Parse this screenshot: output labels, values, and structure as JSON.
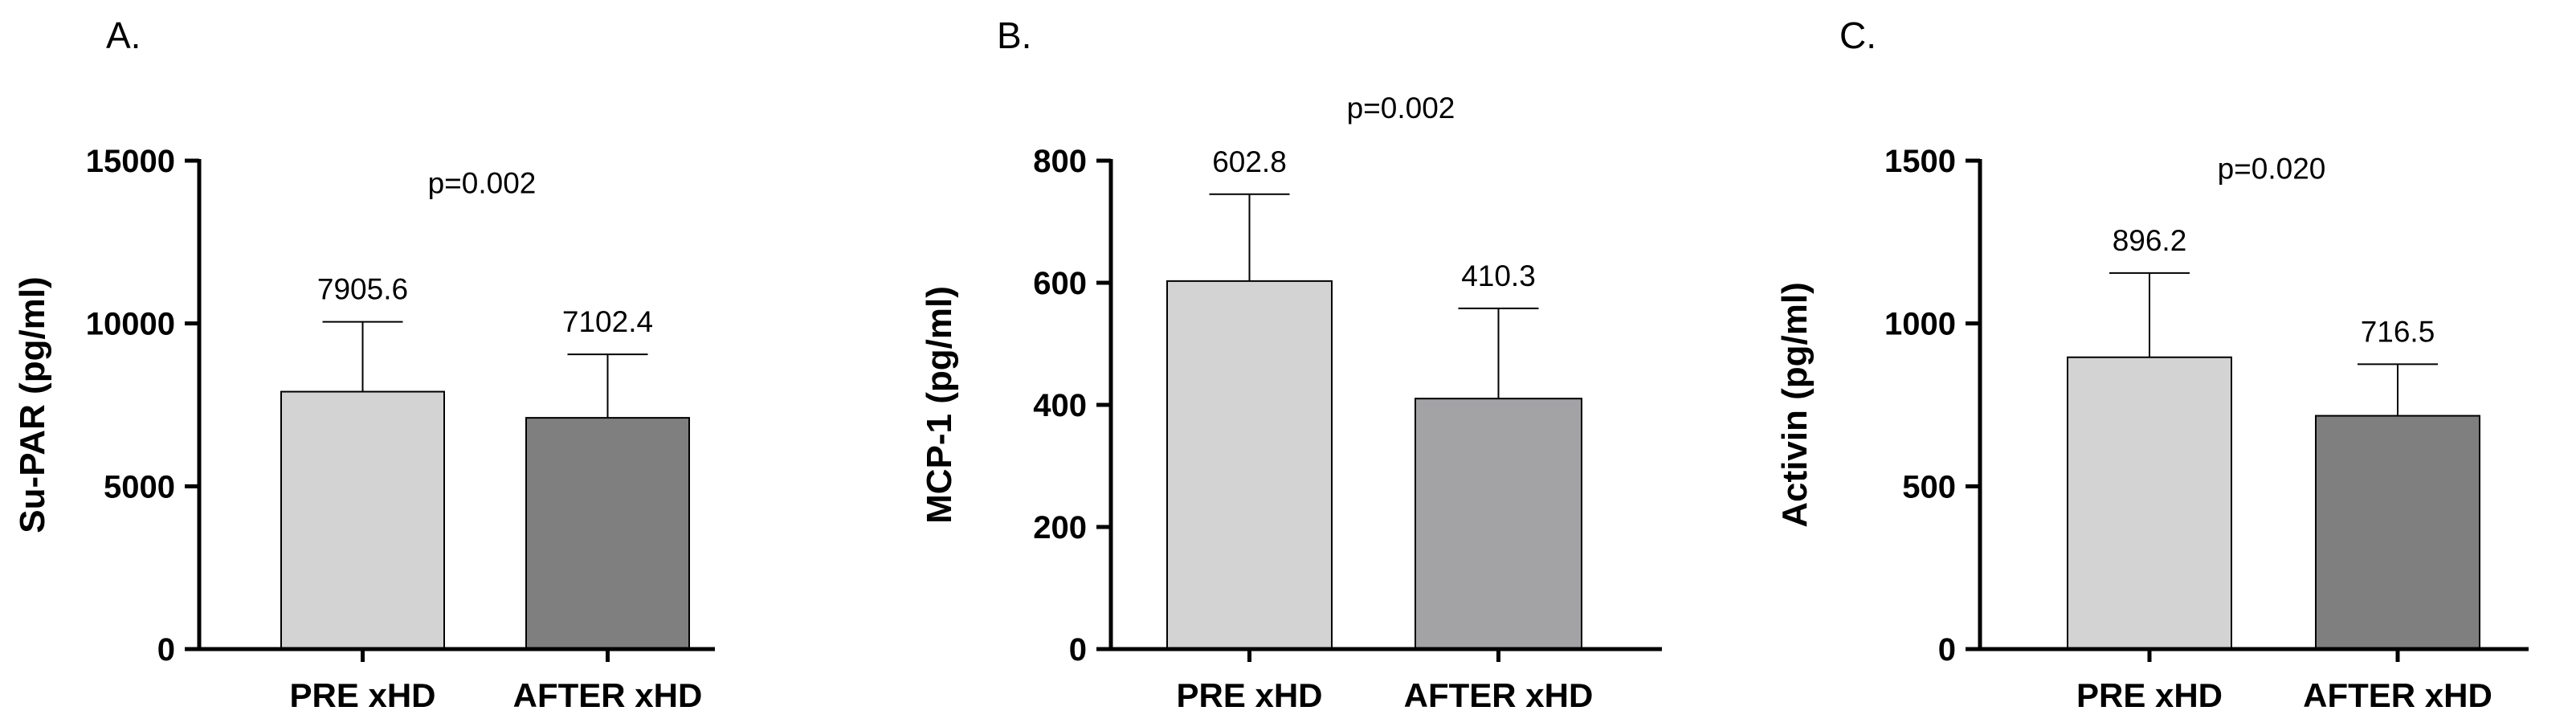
{
  "chart_data": [
    {
      "type": "bar",
      "panel_label": "A.",
      "ylabel": "Su-PAR (pg/ml)",
      "ylim": [
        0,
        15000
      ],
      "yticks": [
        0,
        5000,
        10000,
        15000
      ],
      "categories": [
        "PRE xHD",
        "AFTER xHD"
      ],
      "values": [
        7905.6,
        7102.4
      ],
      "value_labels": [
        "7905.6",
        "7102.4"
      ],
      "error_upper": [
        10050,
        9050
      ],
      "bar_colors": [
        "#d3d3d3",
        "#7f7f7f"
      ],
      "annotation": "p=0.002",
      "annotation_y": 14000,
      "legend": "none",
      "grid": false
    },
    {
      "type": "bar",
      "panel_label": "B.",
      "ylabel": "MCP-1 (pg/ml)",
      "ylim": [
        0,
        800
      ],
      "yticks": [
        0,
        200,
        400,
        600,
        800
      ],
      "categories": [
        "PRE xHD",
        "AFTER xHD"
      ],
      "values": [
        602.8,
        410.3
      ],
      "value_labels": [
        "602.8",
        "410.3"
      ],
      "error_upper": [
        745,
        558
      ],
      "bar_colors": [
        "#d3d3d3",
        "#a3a3a6"
      ],
      "annotation": "p=0.002",
      "annotation_y": 870,
      "legend": "none",
      "grid": false
    },
    {
      "type": "bar",
      "panel_label": "C.",
      "ylabel": "Activin (pg/ml)",
      "ylim": [
        0,
        1500
      ],
      "yticks": [
        0,
        500,
        1000,
        1500
      ],
      "categories": [
        "PRE xHD",
        "AFTER xHD"
      ],
      "values": [
        896.2,
        716.5
      ],
      "value_labels": [
        "896.2",
        "716.5"
      ],
      "error_upper": [
        1155,
        875
      ],
      "bar_colors": [
        "#d3d3d3",
        "#7f7f7f"
      ],
      "annotation": "p=0.020",
      "annotation_y": 1445,
      "legend": "none",
      "grid": false
    }
  ]
}
